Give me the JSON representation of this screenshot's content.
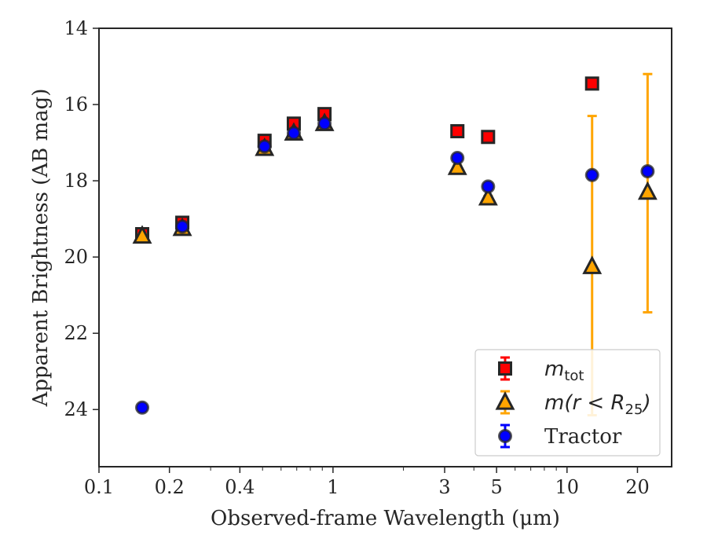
{
  "chart_data": {
    "type": "scatter",
    "xlabel": "Observed-frame Wavelength (μm)",
    "ylabel": "Apparent Brightness (AB mag)",
    "x_scale": "log",
    "xlim": [
      0.1,
      28
    ],
    "ylim": [
      25.5,
      14
    ],
    "y_inverted": true,
    "grid": false,
    "legend_position": "lower-right",
    "x_ticks": [
      {
        "value": 0.1,
        "label": "0.1"
      },
      {
        "value": 0.2,
        "label": "0.2"
      },
      {
        "value": 0.4,
        "label": "0.4"
      },
      {
        "value": 1,
        "label": "1"
      },
      {
        "value": 3,
        "label": "3"
      },
      {
        "value": 5,
        "label": "5"
      },
      {
        "value": 10,
        "label": "10"
      },
      {
        "value": 20,
        "label": "20"
      }
    ],
    "y_ticks": [
      {
        "value": 14,
        "label": "14"
      },
      {
        "value": 16,
        "label": "16"
      },
      {
        "value": 18,
        "label": "18"
      },
      {
        "value": 20,
        "label": "20"
      },
      {
        "value": 22,
        "label": "22"
      },
      {
        "value": 24,
        "label": "24"
      }
    ],
    "series": [
      {
        "name": "m_tot",
        "legend_main": "m",
        "legend_sub": "tot",
        "marker": "square",
        "color": "#ff0000",
        "edge_color": "#262626",
        "error_color": "#ff0000",
        "points": [
          {
            "x": 0.153,
            "y": 19.4,
            "err": 0.05
          },
          {
            "x": 0.227,
            "y": 19.1,
            "err": 0.05
          },
          {
            "x": 0.51,
            "y": 16.95,
            "err": 0.1
          },
          {
            "x": 0.68,
            "y": 16.5,
            "err": 0.08
          },
          {
            "x": 0.92,
            "y": 16.25,
            "err": 0.05
          },
          {
            "x": 3.4,
            "y": 16.7,
            "err": 0.03
          },
          {
            "x": 4.6,
            "y": 16.85,
            "err": 0.03
          },
          {
            "x": 12.8,
            "y": 15.45,
            "err": 0.03
          }
        ]
      },
      {
        "name": "m(r < R_25)",
        "legend_main": "m(r < R",
        "legend_sub": "25",
        "legend_close": ")",
        "marker": "triangle",
        "color": "#ffa500",
        "edge_color": "#262626",
        "error_color": "#ffa500",
        "points": [
          {
            "x": 0.153,
            "y": 19.45,
            "err": 0.05
          },
          {
            "x": 0.227,
            "y": 19.25,
            "err": 0.05
          },
          {
            "x": 0.51,
            "y": 17.15,
            "err": 0.05
          },
          {
            "x": 0.68,
            "y": 16.75,
            "err": 0.05
          },
          {
            "x": 0.92,
            "y": 16.5,
            "err": 0.05
          },
          {
            "x": 3.4,
            "y": 17.65,
            "err": 0.05
          },
          {
            "x": 4.6,
            "y": 18.45,
            "err": 0.05
          },
          {
            "x": 12.8,
            "y": 20.25,
            "err_low": 3.95,
            "err_high": 3.9
          },
          {
            "x": 22.1,
            "y": 18.3,
            "err_low": 3.1,
            "err_high": 3.15
          }
        ]
      },
      {
        "name": "Tractor",
        "legend_main": "Tractor",
        "marker": "circle",
        "color": "#0000ff",
        "edge_color": "#262626",
        "error_color": "#0000ff",
        "points": [
          {
            "x": 0.153,
            "y": 23.95,
            "err": 0.05
          },
          {
            "x": 0.227,
            "y": 19.2,
            "err": 0.05
          },
          {
            "x": 0.51,
            "y": 17.1,
            "err": 0.05
          },
          {
            "x": 0.68,
            "y": 16.75,
            "err": 0.05
          },
          {
            "x": 0.92,
            "y": 16.5,
            "err": 0.05
          },
          {
            "x": 3.4,
            "y": 17.4,
            "err": 0.05
          },
          {
            "x": 4.6,
            "y": 18.15,
            "err": 0.05
          },
          {
            "x": 12.8,
            "y": 17.85,
            "err": 0.05
          },
          {
            "x": 22.1,
            "y": 17.75,
            "err": 0.05
          }
        ]
      }
    ]
  }
}
